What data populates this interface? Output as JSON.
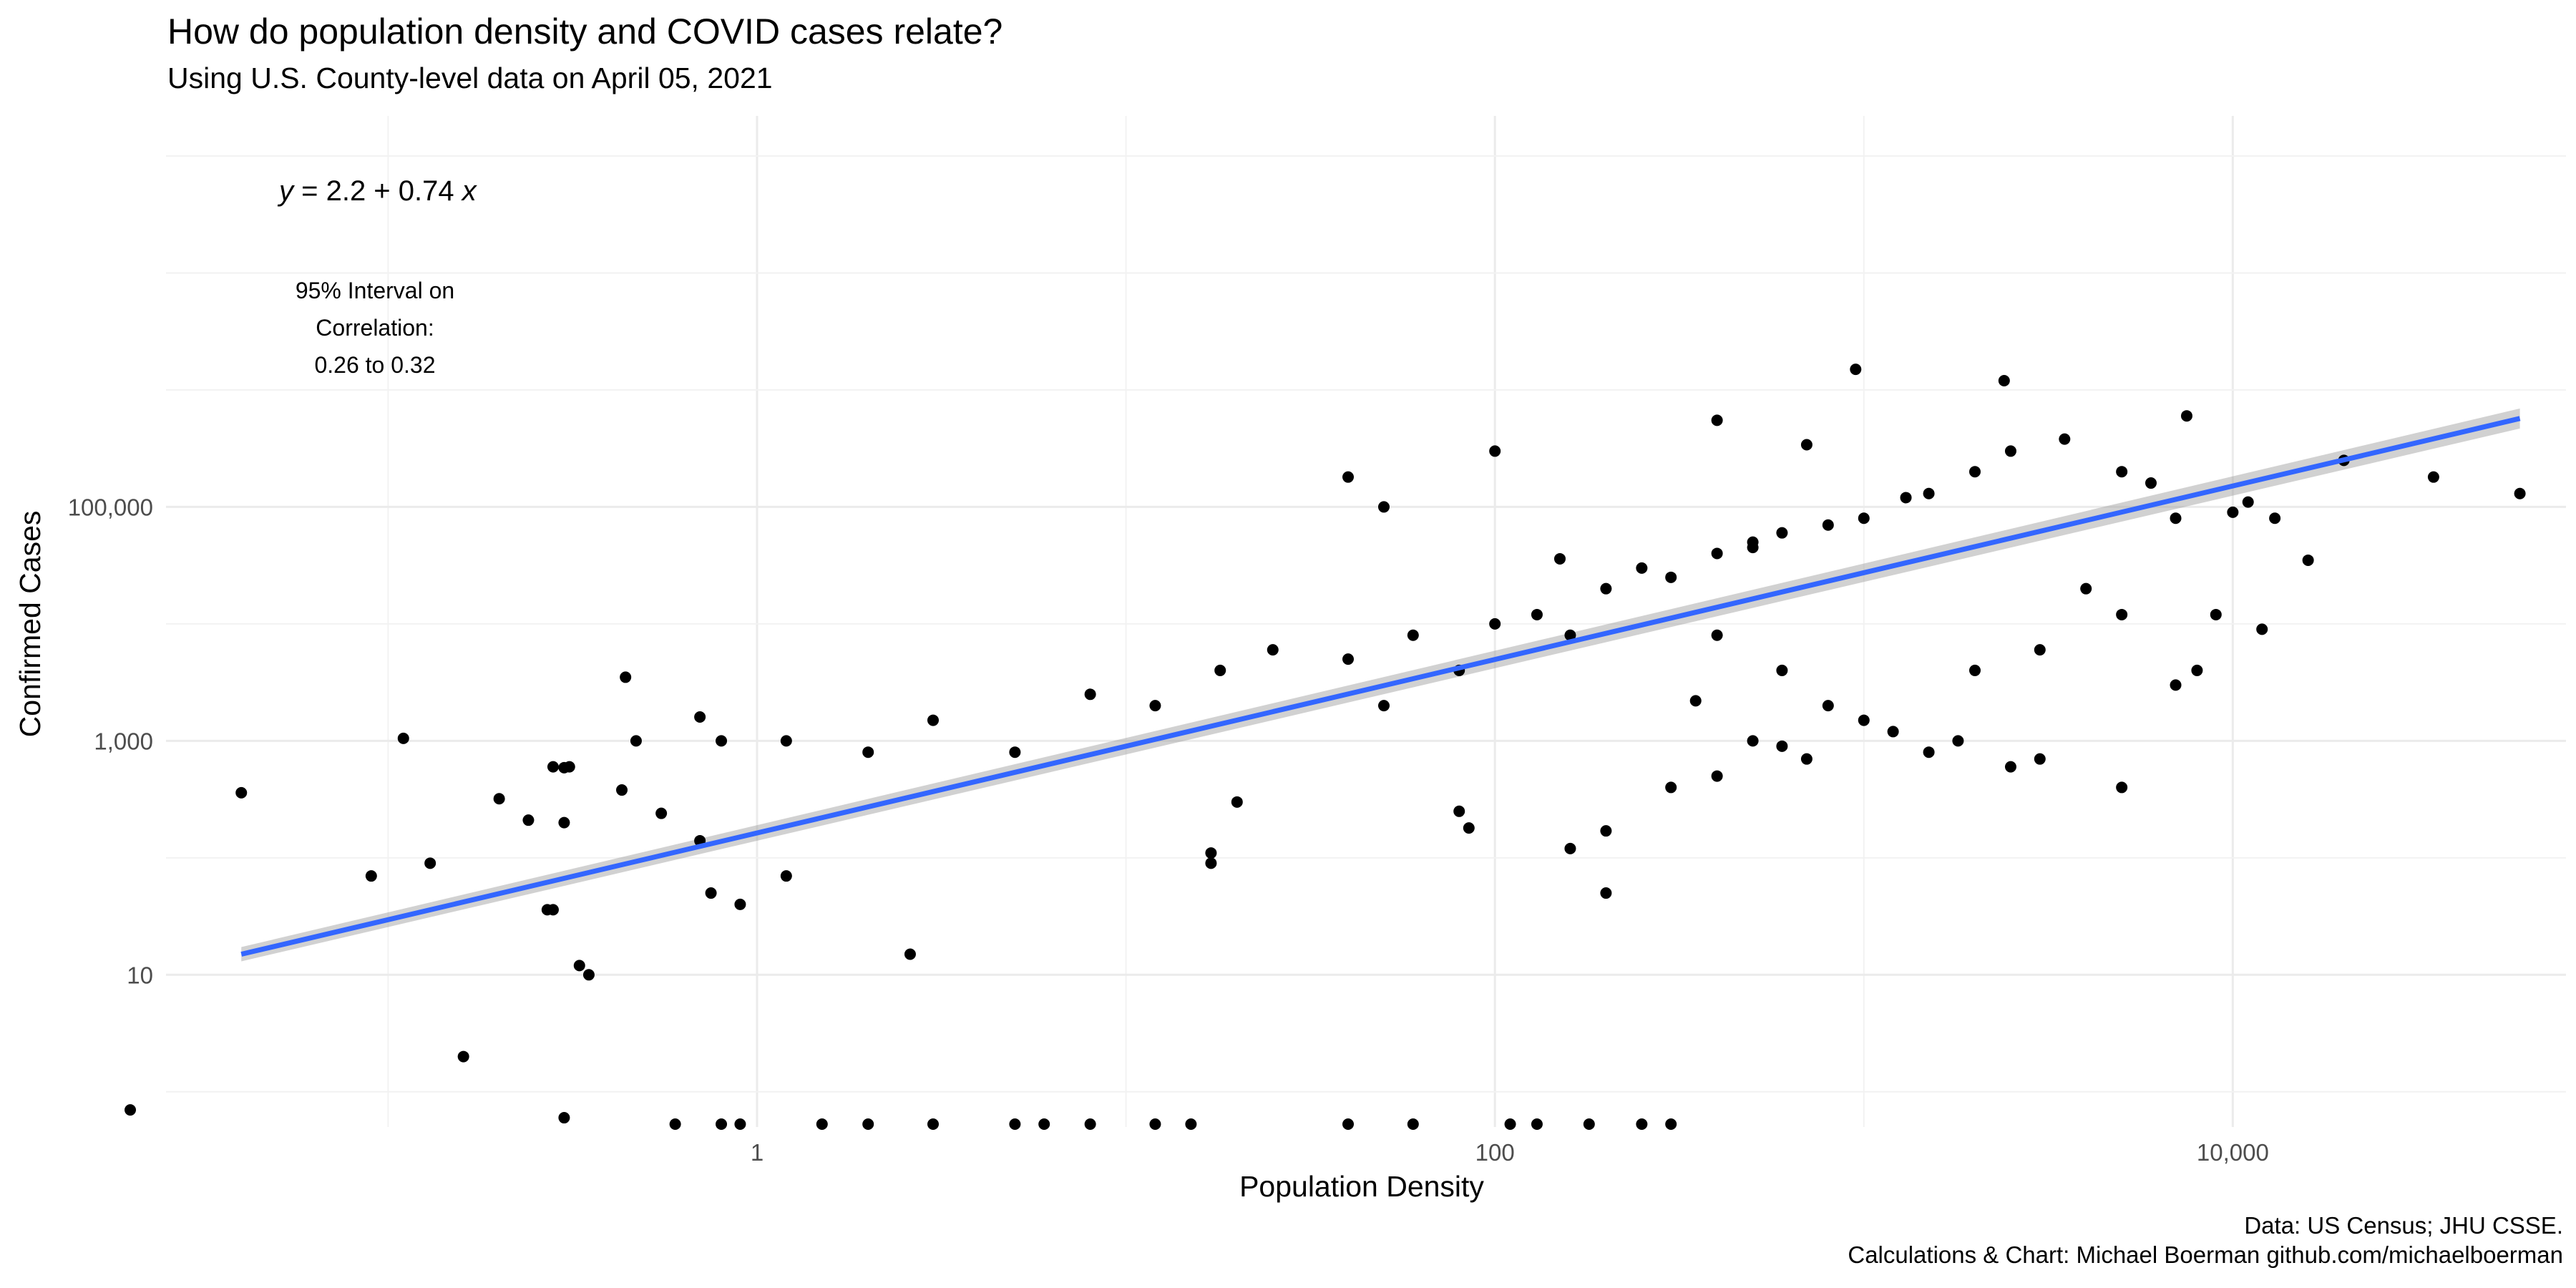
{
  "page": {
    "title": "How do population density and COVID cases relate?",
    "subtitle": "Using U.S. County-level data on April 05, 2021",
    "caption_line1": "Data: US Census; JHU CSSE.",
    "caption_line2": "Calculations & Chart: Michael Boerman github.com/michaelboerman"
  },
  "chart_data": {
    "type": "scatter",
    "title": "How do population density and COVID cases relate?",
    "subtitle": "Using U.S. County-level data on April 05, 2021",
    "xlabel": "Population Density",
    "ylabel": "Confirmed Cases",
    "x_scale": "log10",
    "y_scale": "log10",
    "xlim": [
      0.025,
      80000
    ],
    "ylim": [
      0.5,
      220000000
    ],
    "x_ticks": [
      {
        "value": 1,
        "label": "1"
      },
      {
        "value": 100,
        "label": "100"
      },
      {
        "value": 10000,
        "label": "10,000"
      }
    ],
    "y_ticks": [
      {
        "value": 10,
        "label": "10"
      },
      {
        "value": 1000,
        "label": "1,000"
      },
      {
        "value": 100000,
        "label": "100,000"
      }
    ],
    "grid": true,
    "series": [
      {
        "type": "scatter",
        "color": "#000000",
        "points": [
          [
            0.04,
            360
          ],
          [
            0.11,
            1050
          ],
          [
            0.09,
            70
          ],
          [
            0.13,
            90
          ],
          [
            0.28,
            600
          ],
          [
            0.3,
            200
          ],
          [
            0.31,
            600
          ],
          [
            0.33,
            12
          ],
          [
            0.35,
            10
          ],
          [
            0.3,
            590
          ],
          [
            0.43,
            380
          ],
          [
            0.47,
            1000
          ],
          [
            0.55,
            240
          ],
          [
            0.7,
            1600
          ],
          [
            0.8,
            1000
          ],
          [
            0.7,
            140
          ],
          [
            0.9,
            40
          ],
          [
            1.2,
            70
          ],
          [
            2.6,
            15
          ],
          [
            0.44,
            3500
          ],
          [
            0.24,
            210
          ],
          [
            0.2,
            320
          ],
          [
            0.27,
            36
          ],
          [
            0.16,
            2
          ],
          [
            0.3,
            0.6
          ],
          [
            0.28,
            36
          ],
          [
            0.75,
            50
          ],
          [
            1.2,
            1000
          ],
          [
            2,
            800
          ],
          [
            3,
            1500
          ],
          [
            5,
            800
          ],
          [
            8,
            2500
          ],
          [
            12,
            2000
          ],
          [
            18,
            4000
          ],
          [
            25,
            6000
          ],
          [
            40,
            5000
          ],
          [
            50,
            2000
          ],
          [
            60,
            8000
          ],
          [
            80,
            4000
          ],
          [
            100,
            10000
          ],
          [
            130,
            12000
          ],
          [
            160,
            8000
          ],
          [
            200,
            20000
          ],
          [
            250,
            30000
          ],
          [
            300,
            25000
          ],
          [
            400,
            40000
          ],
          [
            500,
            50000
          ],
          [
            600,
            60000
          ],
          [
            800,
            70000
          ],
          [
            1000,
            80000
          ],
          [
            1300,
            120000
          ],
          [
            1500,
            130000
          ],
          [
            2000,
            200000
          ],
          [
            2400,
            1200000
          ],
          [
            3500,
            380000
          ],
          [
            2500,
            300000
          ],
          [
            5000,
            200000
          ],
          [
            6000,
            160000
          ],
          [
            7000,
            80000
          ],
          [
            9000,
            12000
          ],
          [
            10000,
            90000
          ],
          [
            11000,
            110000
          ],
          [
            13000,
            80000
          ],
          [
            16000,
            35000
          ],
          [
            20000,
            250000
          ],
          [
            35000,
            180000
          ],
          [
            60000,
            130000
          ],
          [
            400,
            8000
          ],
          [
            600,
            4000
          ],
          [
            800,
            2000
          ],
          [
            1000,
            1500
          ],
          [
            1200,
            1200
          ],
          [
            1500,
            800
          ],
          [
            1800,
            1000
          ],
          [
            2500,
            600
          ],
          [
            3000,
            700
          ],
          [
            5000,
            400
          ],
          [
            7000,
            3000
          ],
          [
            8000,
            4000
          ],
          [
            12000,
            9000
          ],
          [
            5000,
            12000
          ],
          [
            4000,
            20000
          ],
          [
            3000,
            6000
          ],
          [
            2000,
            4000
          ],
          [
            500,
            1000
          ],
          [
            600,
            900
          ],
          [
            700,
            700
          ],
          [
            400,
            500
          ],
          [
            80,
            250
          ],
          [
            85,
            180
          ],
          [
            20,
            300
          ],
          [
            17,
            90
          ],
          [
            17,
            110
          ],
          [
            200,
            50
          ],
          [
            200,
            170
          ],
          [
            160,
            120
          ],
          [
            300,
            400
          ],
          [
            350,
            2200
          ],
          [
            150,
            36000
          ],
          [
            100,
            300000
          ],
          [
            400,
            550000
          ],
          [
            700,
            340000
          ],
          [
            950,
            1500000
          ],
          [
            7500,
            600000
          ],
          [
            500,
            45000
          ],
          [
            50,
            100000
          ],
          [
            40,
            180000
          ],
          [
            0.02,
            0.7
          ],
          [
            0.8,
            0.5
          ],
          [
            0.9,
            0.5
          ],
          [
            1.5,
            0.5
          ],
          [
            2,
            0.5
          ],
          [
            3,
            0.5
          ],
          [
            5,
            0.5
          ],
          [
            8,
            0.5
          ],
          [
            12,
            0.5
          ],
          [
            15,
            0.5
          ],
          [
            40,
            0.5
          ],
          [
            60,
            0.5
          ],
          [
            110,
            0.5
          ],
          [
            130,
            0.5
          ],
          [
            180,
            0.5
          ],
          [
            250,
            0.5
          ],
          [
            300,
            0.5
          ],
          [
            0.6,
            0.5
          ],
          [
            6,
            0.5
          ]
        ]
      }
    ],
    "fit_line": {
      "equation_parts": [
        "y",
        " = 2.2 + 0.74 ",
        "x"
      ],
      "color": "#3366FF",
      "x_start": 0.04,
      "x_end": 60000,
      "y_start": 15,
      "y_end": 570000
    },
    "annotations": [
      {
        "text": "95% Interval on",
        "role": "interval_line1"
      },
      {
        "text": "Correlation:",
        "role": "interval_line2"
      },
      {
        "text": "0.26 to 0.32",
        "role": "interval_line3"
      }
    ]
  }
}
